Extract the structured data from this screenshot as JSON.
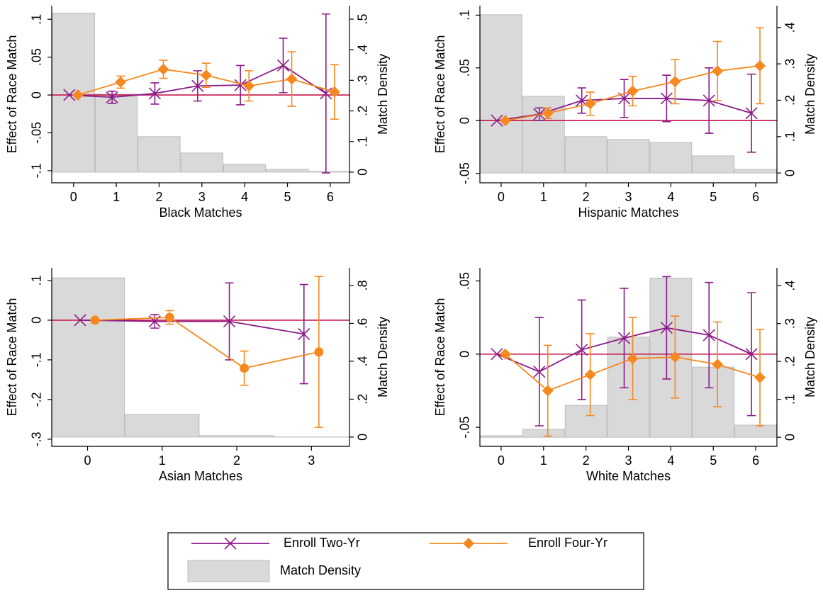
{
  "chart_data": [
    {
      "type": "combo",
      "xlabel": "Black Matches",
      "ylabel": "Effect of Race Match",
      "y2label": "Match Density",
      "x": [
        0,
        1,
        2,
        3,
        4,
        5,
        6
      ],
      "xlim": [
        -0.51,
        6.45
      ],
      "xticks": [
        0,
        1,
        2,
        3,
        4,
        5,
        6
      ],
      "ylim": [
        -0.116,
        0.118
      ],
      "yticks": [
        {
          "value": -0.1,
          "label": "-.1"
        },
        {
          "value": -0.05,
          "label": "-.05"
        },
        0,
        {
          "value": 0.05,
          "label": ".05"
        },
        {
          "value": 0.1,
          "label": ".1"
        }
      ],
      "y2lim": [
        -0.035,
        0.544
      ],
      "y2ticks": [
        0,
        {
          "value": 0.1,
          "label": ".1"
        },
        {
          "value": 0.2,
          "label": ".2"
        },
        {
          "value": 0.3,
          "label": ".3"
        },
        {
          "value": 0.4,
          "label": ".4"
        },
        {
          "value": 0.5,
          "label": ".5"
        }
      ],
      "hline": 0,
      "hline_color": "#c8174a",
      "series": [
        {
          "name": "Match Density",
          "type": "bar",
          "axis": "y2",
          "color": "#d9d9d9",
          "values": [
            0.52,
            0.255,
            0.116,
            0.0625,
            0.025,
            0.009,
            0.002
          ]
        },
        {
          "name": "Enroll Two-Yr",
          "type": "line",
          "marker": "x",
          "color": "#8b1a89",
          "values": [
            0,
            -0.003,
            0.002,
            0.012,
            0.013,
            0.039,
            0.002
          ],
          "errors": [
            null,
            0.008,
            0.014,
            0.02,
            0.026,
            0.036,
            0.105
          ]
        },
        {
          "name": "Enroll Four-Yr",
          "type": "line",
          "marker": "diamond",
          "color": "#f5891f",
          "values": [
            0,
            0.017,
            0.034,
            0.026,
            0.012,
            0.021,
            0.004
          ],
          "errors": [
            null,
            0.008,
            0.012,
            0.016,
            0.02,
            0.036,
            0.036
          ]
        }
      ]
    },
    {
      "type": "combo",
      "xlabel": "Hispanic Matches",
      "ylabel": "Effect of Race Match",
      "y2label": "Match Density",
      "x": [
        0,
        1,
        2,
        3,
        4,
        5,
        6
      ],
      "xlim": [
        -0.5,
        6.5
      ],
      "xticks": [
        0,
        1,
        2,
        3,
        4,
        5,
        6
      ],
      "ylim": [
        -0.059,
        0.109
      ],
      "yticks": [
        {
          "value": -0.05,
          "label": "-.05"
        },
        0,
        {
          "value": 0.05,
          "label": ".05"
        },
        {
          "value": 0.1,
          "label": ".1"
        }
      ],
      "y2lim": [
        -0.027,
        0.46
      ],
      "y2ticks": [
        0,
        {
          "value": 0.1,
          "label": ".1"
        },
        {
          "value": 0.2,
          "label": ".2"
        },
        {
          "value": 0.3,
          "label": ".3"
        },
        {
          "value": 0.4,
          "label": ".4"
        }
      ],
      "hline": 0,
      "hline_color": "#c8174a",
      "series": [
        {
          "type": "bar",
          "axis": "y2",
          "color": "#d9d9d9",
          "values": [
            0.435,
            0.211,
            0.1,
            0.092,
            0.084,
            0.047,
            0.01
          ]
        },
        {
          "type": "line",
          "marker": "x",
          "color": "#8b1a89",
          "values": [
            0,
            0.006,
            0.019,
            0.021,
            0.021,
            0.019,
            0.007
          ],
          "errors": [
            null,
            0.006,
            0.012,
            0.018,
            0.022,
            0.031,
            0.037
          ]
        },
        {
          "type": "line",
          "marker": "diamond",
          "color": "#f5891f",
          "values": [
            0,
            0.007,
            0.016,
            0.028,
            0.037,
            0.047,
            0.052
          ],
          "errors": [
            null,
            0.005,
            0.011,
            0.014,
            0.021,
            0.028,
            0.036
          ]
        }
      ]
    },
    {
      "type": "combo",
      "xlabel": "Asian Matches",
      "ylabel": "Effect of Race Match",
      "y2label": "Match Density",
      "x": [
        0,
        1,
        2,
        3
      ],
      "xlim": [
        -0.48,
        3.51
      ],
      "xticks": [
        0,
        1,
        2,
        3
      ],
      "ylim": [
        -0.318,
        0.132
      ],
      "yticks": [
        {
          "value": -0.3,
          "label": "-.3"
        },
        {
          "value": -0.2,
          "label": "-.2"
        },
        {
          "value": -0.1,
          "label": "-.1"
        },
        0,
        {
          "value": 0.1,
          "label": ".1"
        }
      ],
      "y2lim": [
        -0.049,
        0.893
      ],
      "y2ticks": [
        0,
        {
          "value": 0.2,
          "label": ".2"
        },
        {
          "value": 0.4,
          "label": ".4"
        },
        {
          "value": 0.6,
          "label": ".6"
        },
        {
          "value": 0.8,
          "label": ".8"
        }
      ],
      "hline": 0,
      "hline_color": "#c8174a",
      "series": [
        {
          "type": "bar",
          "axis": "y2",
          "color": "#d9d9d9",
          "values": [
            0.84,
            0.12,
            0.008,
            0.001
          ]
        },
        {
          "type": "line",
          "marker": "x",
          "color": "#8b1a89",
          "values": [
            0,
            -0.003,
            -0.003,
            -0.035
          ],
          "errors": [
            null,
            0.017,
            0.097,
            0.125
          ]
        },
        {
          "type": "line",
          "marker": "circle",
          "color": "#f5891f",
          "values": [
            0,
            0.007,
            -0.121,
            -0.08
          ],
          "errors": [
            null,
            0.017,
            0.043,
            0.19
          ]
        }
      ]
    },
    {
      "type": "combo",
      "xlabel": "White Matches",
      "ylabel": "Effect of Race Match",
      "y2label": "Match Density",
      "x": [
        0,
        1,
        2,
        3,
        4,
        5,
        6
      ],
      "xlim": [
        -0.5,
        6.5
      ],
      "xticks": [
        0,
        1,
        2,
        3,
        4,
        5,
        6
      ],
      "ylim": [
        -0.063,
        0.059
      ],
      "yticks": [
        {
          "value": -0.05,
          "label": "-.05"
        },
        0,
        {
          "value": 0.05,
          "label": ".05"
        }
      ],
      "y2lim": [
        -0.024,
        0.447
      ],
      "y2ticks": [
        0,
        {
          "value": 0.1,
          "label": ".1"
        },
        {
          "value": 0.2,
          "label": ".2"
        },
        {
          "value": 0.3,
          "label": ".3"
        },
        {
          "value": 0.4,
          "label": ".4"
        }
      ],
      "hline": 0,
      "hline_color": "#c8174a",
      "series": [
        {
          "type": "bar",
          "axis": "y2",
          "color": "#d9d9d9",
          "values": [
            0.004,
            0.021,
            0.084,
            0.264,
            0.42,
            0.185,
            0.032
          ]
        },
        {
          "type": "line",
          "marker": "x",
          "color": "#8b1a89",
          "values": [
            0,
            -0.012,
            0.003,
            0.011,
            0.018,
            0.013,
            0.0
          ],
          "errors": [
            null,
            0.037,
            0.034,
            0.034,
            0.035,
            0.036,
            0.042
          ]
        },
        {
          "type": "line",
          "marker": "diamond",
          "color": "#f5891f",
          "values": [
            0,
            -0.025,
            -0.014,
            -0.003,
            -0.002,
            -0.007,
            -0.016
          ],
          "errors": [
            null,
            0.031,
            0.028,
            0.028,
            0.028,
            0.029,
            0.033
          ]
        }
      ]
    }
  ]
}
